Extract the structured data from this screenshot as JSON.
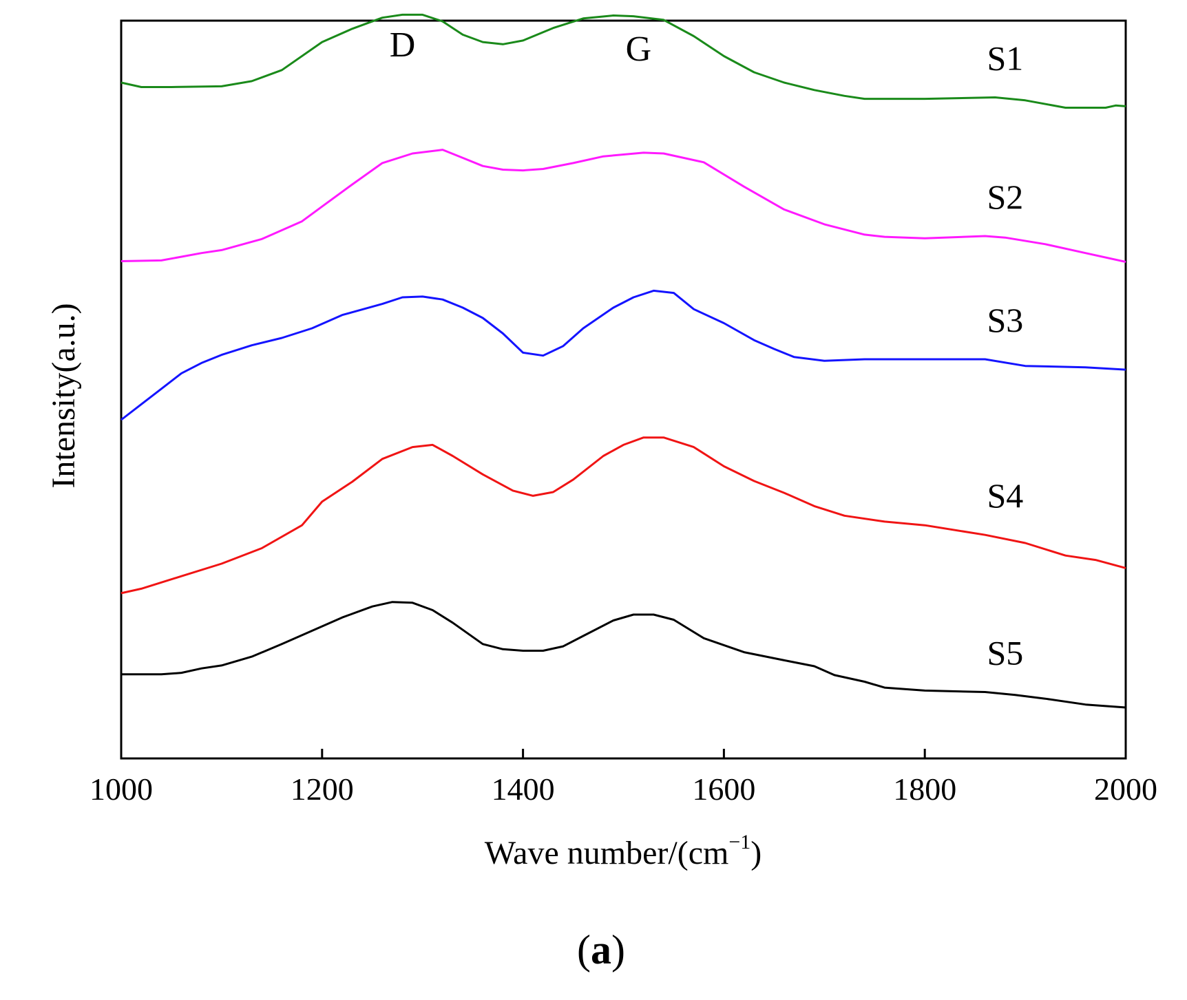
{
  "chart_data": {
    "type": "line",
    "title": "",
    "xlabel": "Wave number/(cm",
    "xlabel_sup": "−1",
    "xlabel_close": ")",
    "ylabel": "Intensity(a.u.)",
    "xlim": [
      1000,
      2000
    ],
    "ylim": [
      0,
      100
    ],
    "xticks": [
      "1000",
      "1200",
      "1400",
      "1600",
      "1800",
      "2000"
    ],
    "xtick_values": [
      1000,
      1200,
      1400,
      1600,
      1800,
      2000
    ],
    "annotations": [
      {
        "text": "D",
        "x": 1280
      },
      {
        "text": "G",
        "x": 1515
      }
    ],
    "panel_label": "(a)",
    "panel_letter": "a",
    "series": [
      {
        "name": "S1",
        "color": "#1a8a1a",
        "x": [
          1000,
          1020,
          1050,
          1100,
          1130,
          1160,
          1200,
          1230,
          1260,
          1280,
          1300,
          1320,
          1340,
          1360,
          1380,
          1400,
          1430,
          1460,
          1490,
          1510,
          1540,
          1570,
          1600,
          1630,
          1660,
          1690,
          1720,
          1740,
          1800,
          1870,
          1900,
          1940,
          1980,
          1990,
          2000
        ],
        "y": [
          91.6,
          91,
          91,
          91.1,
          91.8,
          93.3,
          97.1,
          98.9,
          100.4,
          100.8,
          100.8,
          99.9,
          98.1,
          97.1,
          96.8,
          97.3,
          99,
          100.3,
          100.7,
          100.6,
          100.1,
          97.9,
          95.2,
          93,
          91.6,
          90.6,
          89.8,
          89.4,
          89.4,
          89.6,
          89.2,
          88.2,
          88.2,
          88.5,
          88.4
        ]
      },
      {
        "name": "S2",
        "color": "#ff1aff",
        "x": [
          1000,
          1040,
          1080,
          1100,
          1140,
          1180,
          1200,
          1230,
          1260,
          1290,
          1320,
          1340,
          1360,
          1380,
          1400,
          1420,
          1450,
          1480,
          1520,
          1540,
          1580,
          1620,
          1660,
          1700,
          1740,
          1760,
          1800,
          1860,
          1880,
          1920,
          1960,
          2000
        ],
        "y": [
          67.4,
          67.5,
          68.5,
          68.9,
          70.4,
          72.8,
          74.8,
          77.8,
          80.7,
          82,
          82.5,
          81.4,
          80.3,
          79.8,
          79.7,
          79.9,
          80.7,
          81.6,
          82.1,
          82,
          80.8,
          77.5,
          74.4,
          72.4,
          71,
          70.7,
          70.5,
          70.8,
          70.6,
          69.7,
          68.5,
          67.3
        ]
      },
      {
        "name": "S3",
        "color": "#1414ff",
        "x": [
          1000,
          1020,
          1040,
          1060,
          1080,
          1100,
          1130,
          1160,
          1190,
          1220,
          1260,
          1280,
          1300,
          1320,
          1340,
          1360,
          1380,
          1400,
          1420,
          1440,
          1460,
          1490,
          1510,
          1530,
          1550,
          1570,
          1600,
          1630,
          1650,
          1670,
          1700,
          1740,
          1800,
          1860,
          1900,
          1960,
          2000
        ],
        "y": [
          45.9,
          48,
          50.1,
          52.2,
          53.6,
          54.7,
          56,
          57,
          58.3,
          60.1,
          61.6,
          62.5,
          62.6,
          62.2,
          61.1,
          59.7,
          57.6,
          55,
          54.6,
          55.9,
          58.3,
          61.1,
          62.5,
          63.4,
          63.1,
          60.9,
          59,
          56.7,
          55.5,
          54.4,
          53.9,
          54.1,
          54.1,
          54.1,
          53.2,
          53,
          52.7
        ]
      },
      {
        "name": "S4",
        "color": "#f01414",
        "x": [
          1000,
          1020,
          1060,
          1100,
          1140,
          1180,
          1200,
          1230,
          1260,
          1290,
          1310,
          1330,
          1360,
          1390,
          1410,
          1430,
          1450,
          1480,
          1500,
          1520,
          1540,
          1570,
          1600,
          1630,
          1660,
          1690,
          1720,
          1760,
          1800,
          1860,
          1900,
          1940,
          1970,
          2000
        ],
        "y": [
          22.4,
          23,
          24.7,
          26.4,
          28.5,
          31.6,
          34.8,
          37.5,
          40.6,
          42.2,
          42.5,
          41,
          38.5,
          36.3,
          35.6,
          36.1,
          37.8,
          41,
          42.5,
          43.5,
          43.5,
          42.2,
          39.6,
          37.6,
          36,
          34.2,
          32.9,
          32.1,
          31.6,
          30.3,
          29.2,
          27.5,
          26.9,
          25.8
        ]
      },
      {
        "name": "S5",
        "color": "#000000",
        "x": [
          1000,
          1020,
          1040,
          1060,
          1080,
          1100,
          1130,
          1160,
          1190,
          1220,
          1250,
          1270,
          1290,
          1310,
          1330,
          1360,
          1380,
          1400,
          1420,
          1440,
          1460,
          1490,
          1510,
          1530,
          1550,
          1580,
          1620,
          1660,
          1690,
          1710,
          1740,
          1760,
          1800,
          1860,
          1890,
          1920,
          1960,
          2000
        ],
        "y": [
          11.4,
          11.4,
          11.4,
          11.6,
          12.2,
          12.6,
          13.8,
          15.5,
          17.3,
          19.1,
          20.6,
          21.2,
          21.1,
          20.1,
          18.4,
          15.5,
          14.8,
          14.6,
          14.6,
          15.2,
          16.6,
          18.7,
          19.5,
          19.5,
          18.8,
          16.3,
          14.4,
          13.3,
          12.5,
          11.3,
          10.4,
          9.6,
          9.2,
          9,
          8.6,
          8.1,
          7.3,
          6.9
        ]
      }
    ]
  }
}
